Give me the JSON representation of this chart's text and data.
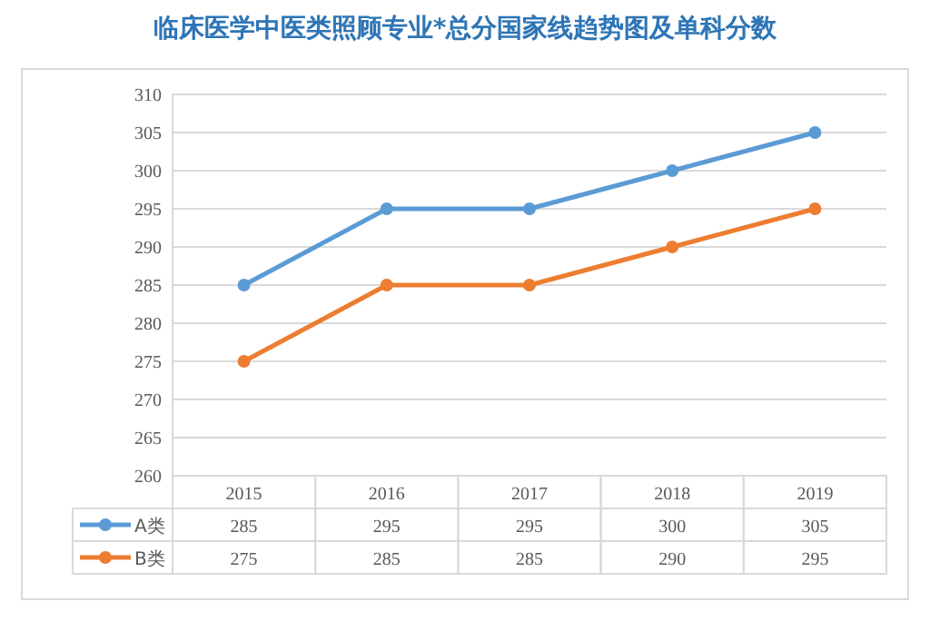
{
  "chart_data": {
    "type": "line",
    "title": "临床医学中医类照顾专业*总分国家线趋势图及单科分数",
    "categories": [
      "2015",
      "2016",
      "2017",
      "2018",
      "2019"
    ],
    "series": [
      {
        "name": "A类",
        "color": "#5b9bd5",
        "values": [
          285,
          295,
          295,
          300,
          305
        ]
      },
      {
        "name": "B类",
        "color": "#ed7d31",
        "values": [
          275,
          285,
          285,
          290,
          295
        ]
      }
    ],
    "ylim": [
      260,
      310
    ],
    "yticks": [
      260,
      265,
      270,
      275,
      280,
      285,
      290,
      295,
      300,
      305,
      310
    ],
    "grid": "y",
    "marker": "circle",
    "line_style": "solid",
    "legend": "bottom",
    "data_labels": true
  }
}
